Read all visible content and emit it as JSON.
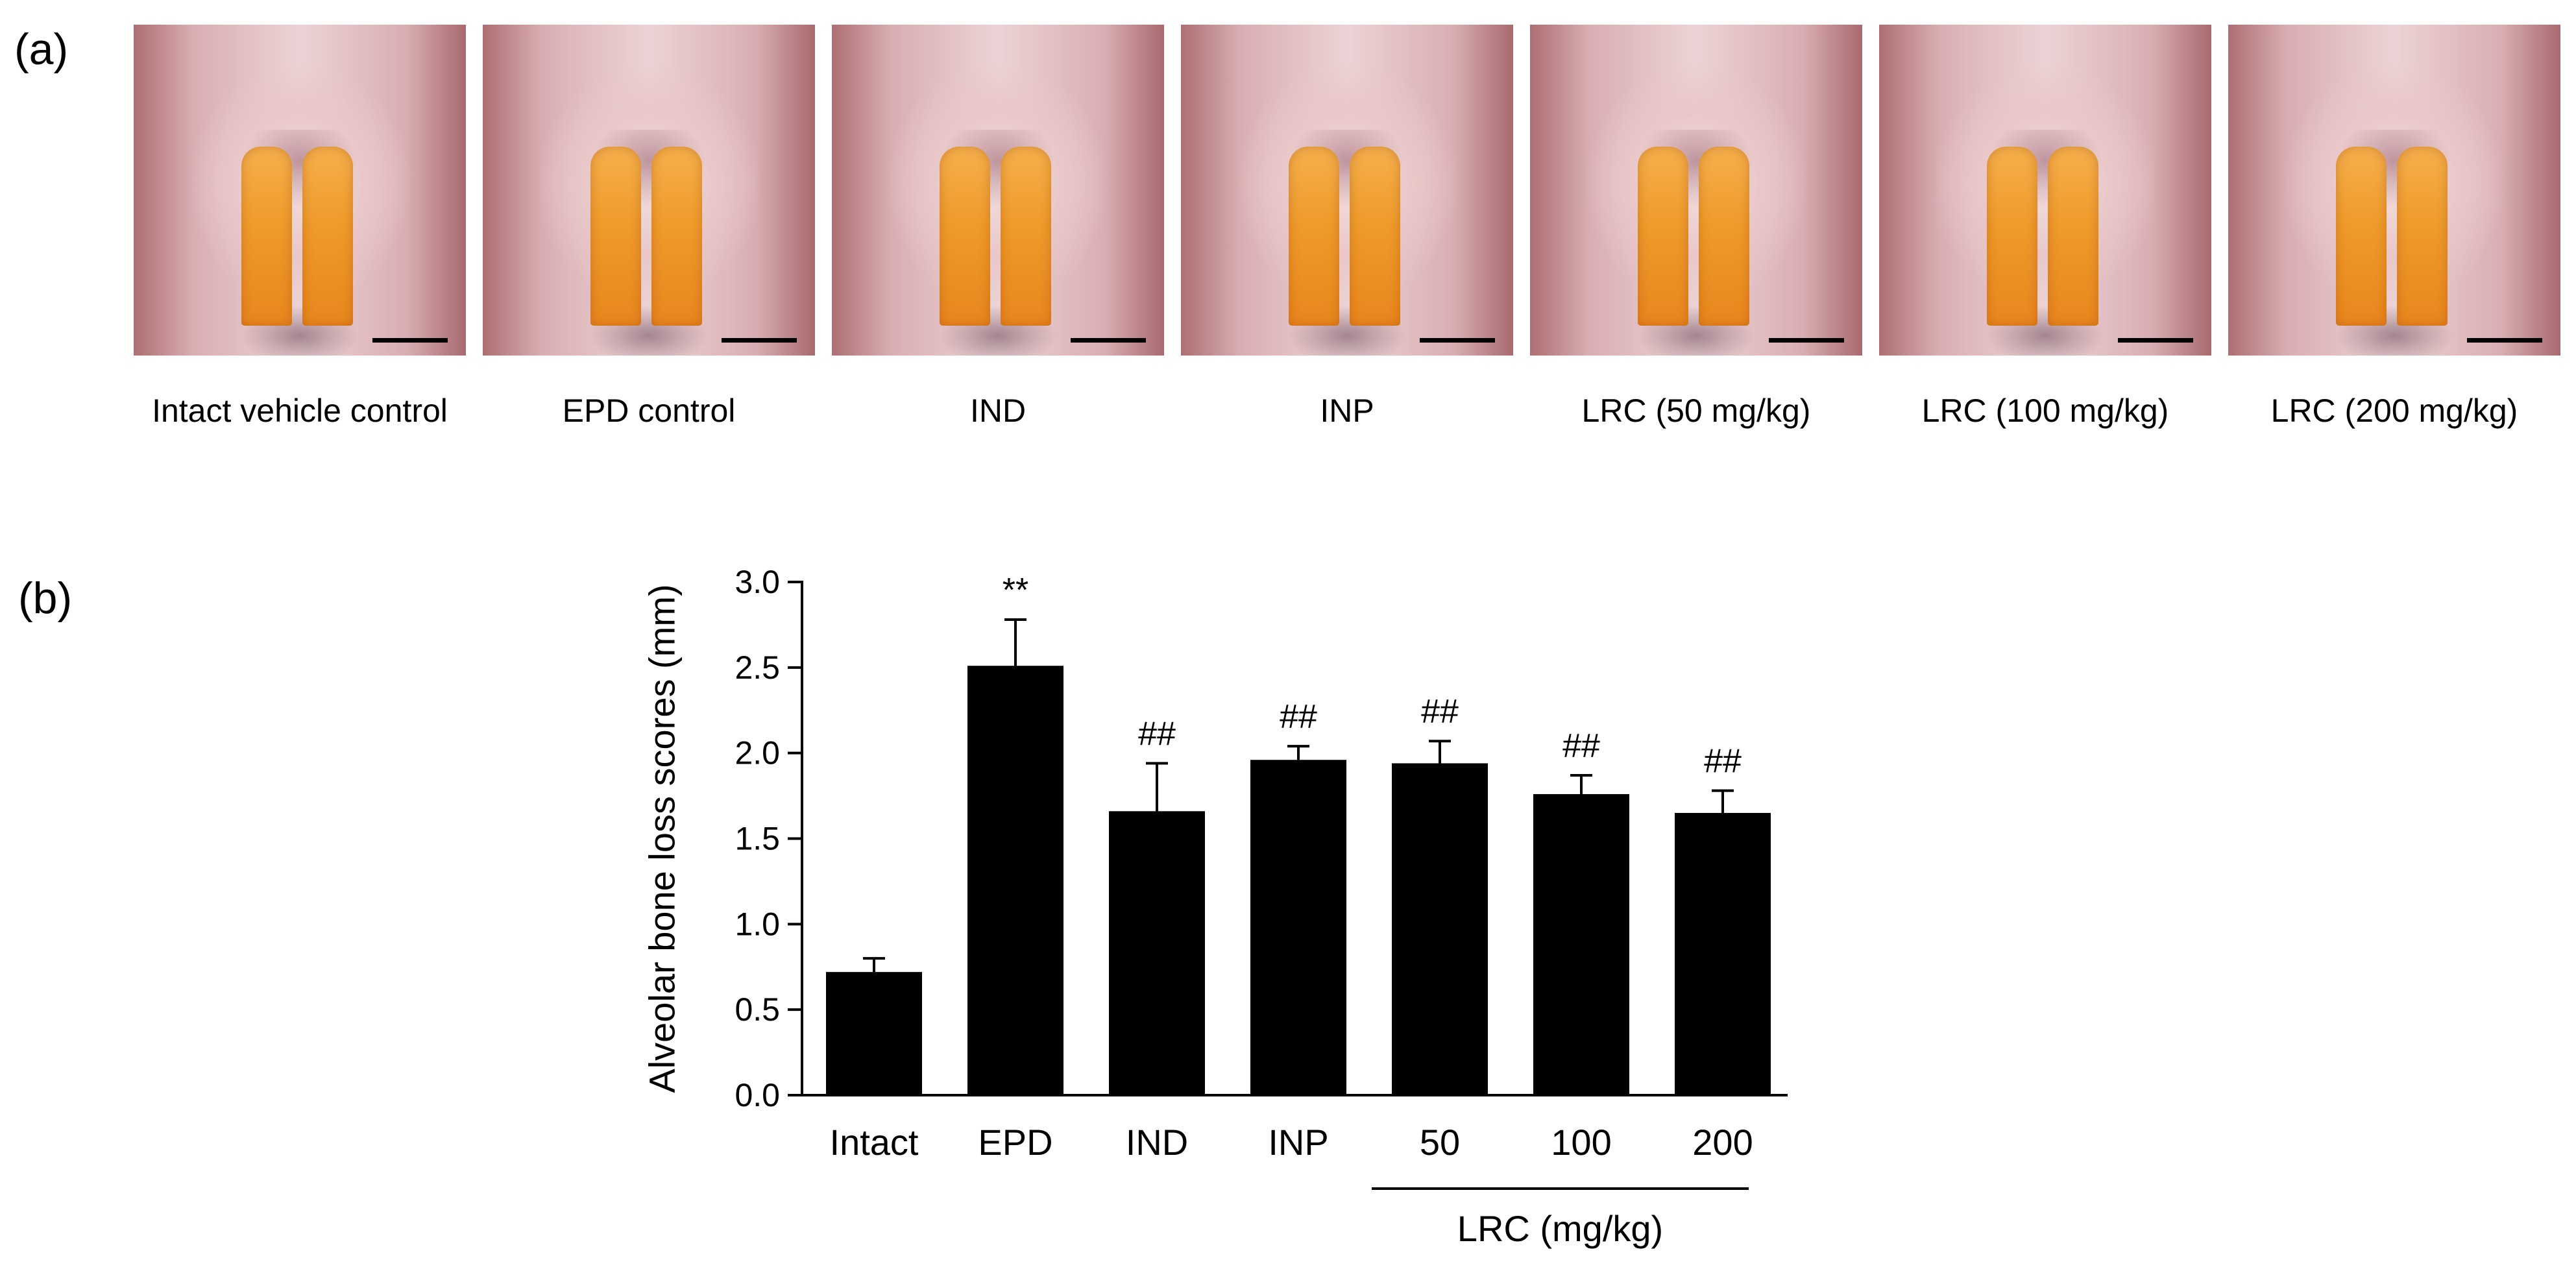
{
  "panel_labels": {
    "a": "(a)",
    "b": "(b)"
  },
  "photos": [
    {
      "caption": "Intact vehicle control"
    },
    {
      "caption": "EPD control"
    },
    {
      "caption": "IND"
    },
    {
      "caption": "INP"
    },
    {
      "caption": "LRC (50 mg/kg)"
    },
    {
      "caption": "LRC (100 mg/kg)"
    },
    {
      "caption": "LRC (200 mg/kg)"
    }
  ],
  "chart_data": {
    "type": "bar",
    "title": "",
    "ylabel": "Alveolar bone loss scores (mm)",
    "xlabel": "",
    "categories": [
      "Intact",
      "EPD",
      "IND",
      "INP",
      "50",
      "100",
      "200"
    ],
    "values": [
      0.72,
      2.51,
      1.66,
      1.96,
      1.94,
      1.76,
      1.65
    ],
    "errors": [
      0.08,
      0.27,
      0.28,
      0.08,
      0.13,
      0.11,
      0.13
    ],
    "annotations": [
      "",
      "**",
      "##",
      "##",
      "##",
      "##",
      "##"
    ],
    "ylim": [
      0,
      3.0
    ],
    "yticks": [
      0.0,
      0.5,
      1.0,
      1.5,
      2.0,
      2.5,
      3.0
    ],
    "ytick_labels": [
      "0.0",
      "0.5",
      "1.0",
      "1.5",
      "2.0",
      "2.5",
      "3.0"
    ],
    "group_label": "LRC (mg/kg)",
    "group_categories": [
      "50",
      "100",
      "200"
    ],
    "bar_color": "#000000",
    "grid": false,
    "legend": "none"
  }
}
